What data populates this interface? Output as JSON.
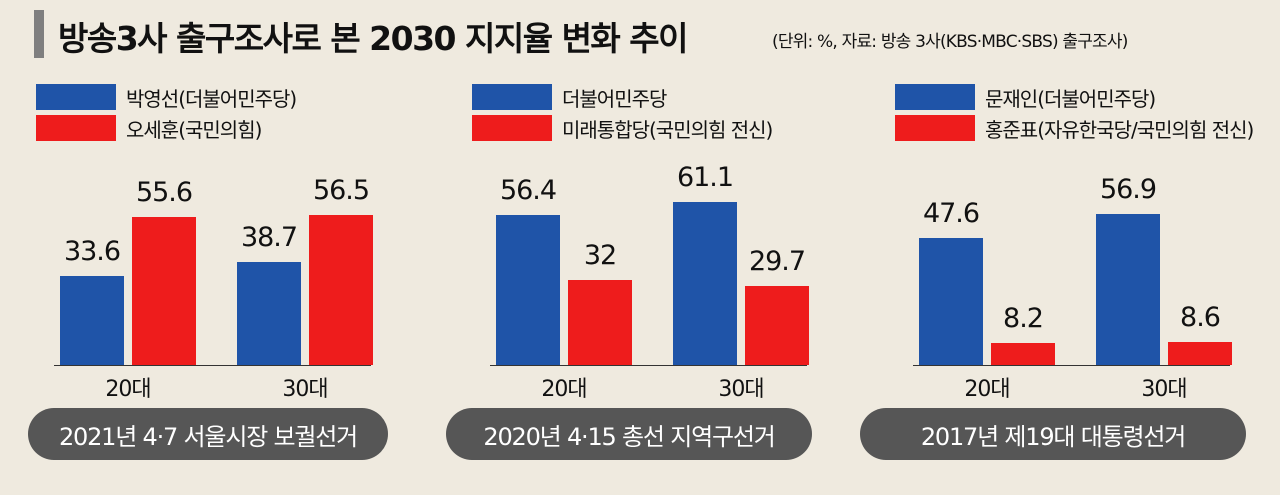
{
  "header": {
    "title": "방송3사 출구조사로 본 2030 지지율 변화 추이",
    "subtitle": "(단위: %, 자료: 방송 3사(KBS·MBC·SBS) 출구조사)"
  },
  "colors": {
    "blue": "#1f54a8",
    "red": "#ee1c1c",
    "pill": "#565656",
    "background": "#efeadf"
  },
  "chart_data": [
    {
      "type": "bar",
      "caption": "2021년 4·7 서울시장 보궐선거",
      "categories": [
        "20대",
        "30대"
      ],
      "series": [
        {
          "name": "박영선(더불어민주당)",
          "color": "#1f54a8",
          "values": [
            33.6,
            38.7
          ]
        },
        {
          "name": "오세훈(국민의힘)",
          "color": "#ee1c1c",
          "values": [
            55.6,
            56.5
          ]
        }
      ]
    },
    {
      "type": "bar",
      "caption": "2020년 4·15 총선 지역구선거",
      "categories": [
        "20대",
        "30대"
      ],
      "series": [
        {
          "name": "더불어민주당",
          "color": "#1f54a8",
          "values": [
            56.4,
            61.1
          ]
        },
        {
          "name": "미래통합당(국민의힘 전신)",
          "color": "#ee1c1c",
          "values": [
            32,
            29.7
          ]
        }
      ]
    },
    {
      "type": "bar",
      "caption": "2017년 제19대 대통령선거",
      "categories": [
        "20대",
        "30대"
      ],
      "series": [
        {
          "name": "문재인(더불어민주당)",
          "color": "#1f54a8",
          "values": [
            47.6,
            56.9
          ]
        },
        {
          "name": "홍준표(자유한국당/국민의힘 전신)",
          "color": "#ee1c1c",
          "values": [
            8.2,
            8.6
          ]
        }
      ]
    }
  ]
}
